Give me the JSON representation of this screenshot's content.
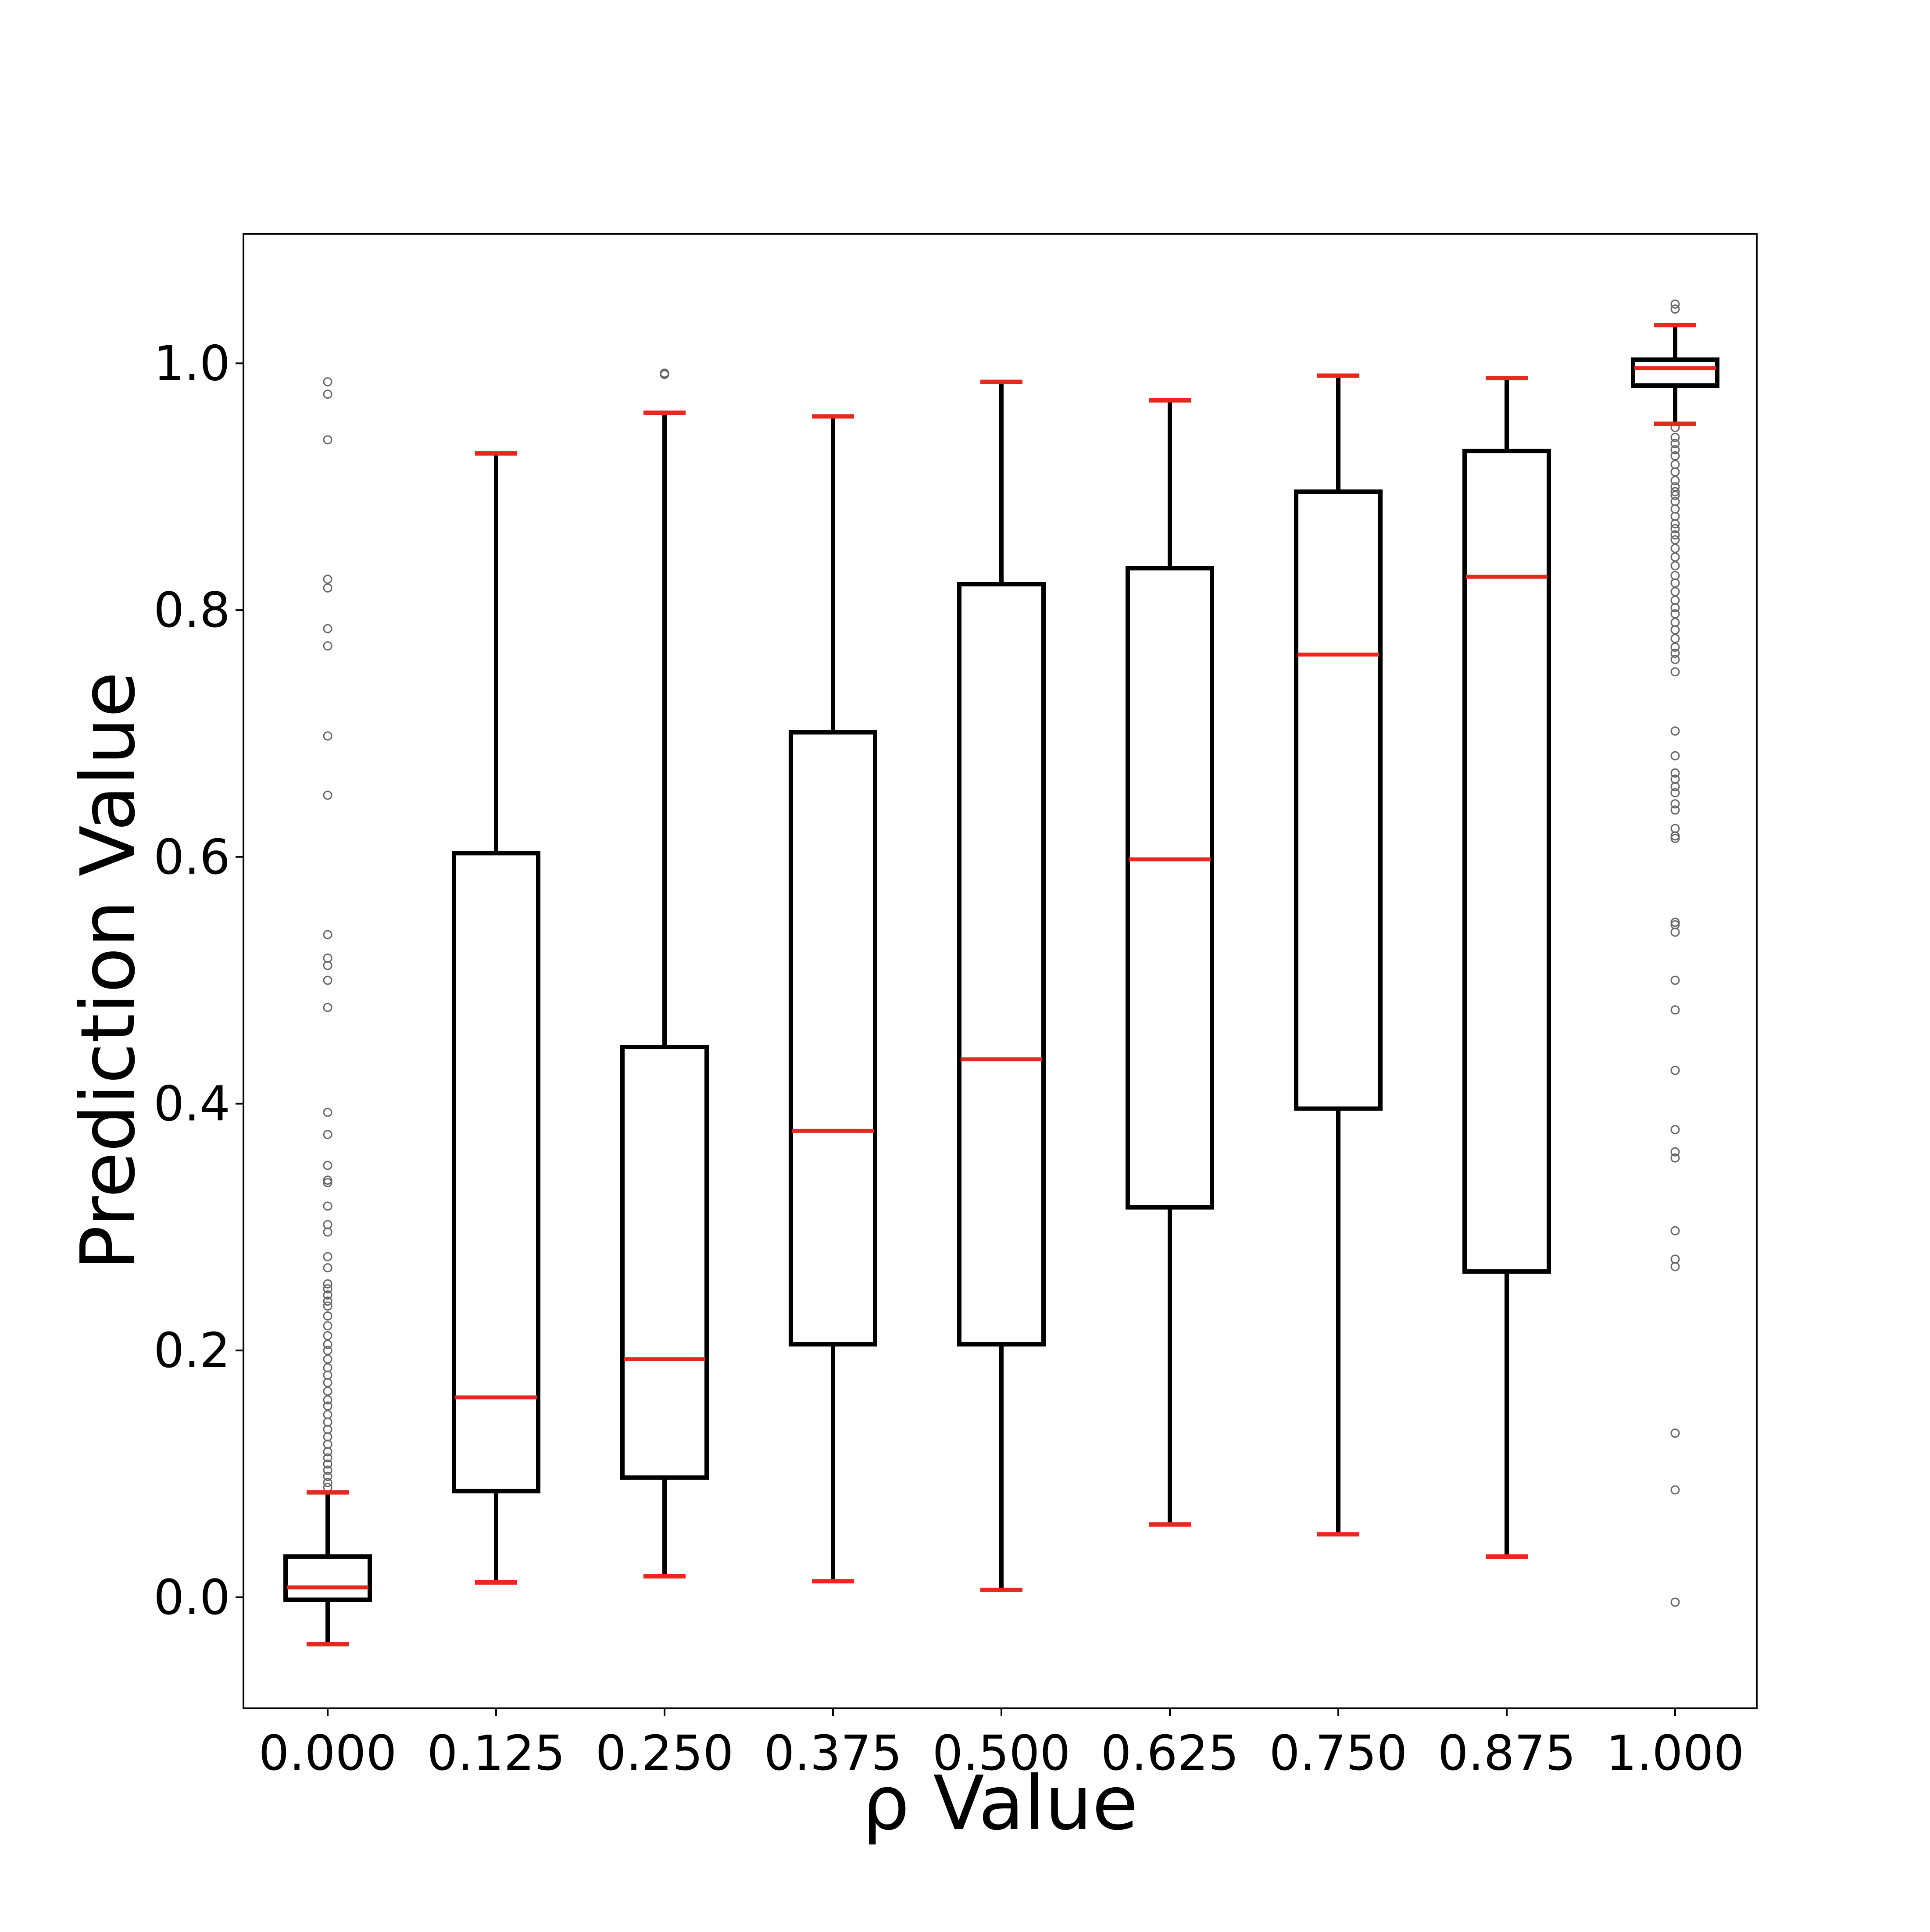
{
  "chart_data": {
    "type": "box",
    "title": "",
    "xlabel": "ρ Value",
    "ylabel": "Prediction Value",
    "ylim": [
      -0.09,
      1.105
    ],
    "yticks": [
      "0.0",
      "0.2",
      "0.4",
      "0.6",
      "0.8",
      "1.0"
    ],
    "ytick_values": [
      0.0,
      0.2,
      0.4,
      0.6,
      0.8,
      1.0
    ],
    "categories": [
      "0.000",
      "0.125",
      "0.250",
      "0.375",
      "0.500",
      "0.625",
      "0.750",
      "0.875",
      "1.000"
    ],
    "boxes": [
      {
        "whisker_low": -0.038,
        "q1": -0.002,
        "median": 0.008,
        "q3": 0.033,
        "whisker_high": 0.085,
        "outliers": [
          0.985,
          0.975,
          0.938,
          0.825,
          0.818,
          0.785,
          0.771,
          0.698,
          0.65,
          0.537,
          0.518,
          0.512,
          0.5,
          0.478,
          0.393,
          0.375,
          0.35,
          0.338,
          0.336,
          0.317,
          0.302,
          0.296,
          0.276,
          0.267,
          0.254,
          0.25,
          0.245,
          0.24,
          0.236,
          0.228,
          0.22,
          0.212,
          0.205,
          0.2,
          0.193,
          0.186,
          0.18,
          0.174,
          0.167,
          0.16,
          0.155,
          0.148,
          0.142,
          0.136,
          0.13,
          0.124,
          0.118,
          0.113,
          0.108,
          0.103,
          0.098,
          0.093,
          0.089
        ]
      },
      {
        "whisker_low": 0.012,
        "q1": 0.086,
        "median": 0.162,
        "q3": 0.603,
        "whisker_high": 0.927,
        "outliers": []
      },
      {
        "whisker_low": 0.017,
        "q1": 0.097,
        "median": 0.193,
        "q3": 0.446,
        "whisker_high": 0.96,
        "outliers": [
          0.992,
          0.991
        ]
      },
      {
        "whisker_low": 0.013,
        "q1": 0.205,
        "median": 0.378,
        "q3": 0.701,
        "whisker_high": 0.957,
        "outliers": []
      },
      {
        "whisker_low": 0.006,
        "q1": 0.205,
        "median": 0.436,
        "q3": 0.821,
        "whisker_high": 0.985,
        "outliers": []
      },
      {
        "whisker_low": 0.059,
        "q1": 0.316,
        "median": 0.598,
        "q3": 0.834,
        "whisker_high": 0.97,
        "outliers": []
      },
      {
        "whisker_low": 0.051,
        "q1": 0.396,
        "median": 0.764,
        "q3": 0.896,
        "whisker_high": 0.99,
        "outliers": []
      },
      {
        "whisker_low": 0.033,
        "q1": 0.264,
        "median": 0.827,
        "q3": 0.929,
        "whisker_high": 0.988,
        "outliers": []
      },
      {
        "whisker_low": 0.951,
        "q1": 0.982,
        "median": 0.996,
        "q3": 1.003,
        "whisker_high": 1.031,
        "outliers": [
          1.048,
          1.044,
          0.948,
          0.94,
          0.935,
          0.93,
          0.925,
          0.918,
          0.912,
          0.905,
          0.9,
          0.896,
          0.893,
          0.888,
          0.882,
          0.876,
          0.87,
          0.866,
          0.861,
          0.857,
          0.85,
          0.843,
          0.836,
          0.828,
          0.822,
          0.815,
          0.808,
          0.802,
          0.797,
          0.79,
          0.784,
          0.777,
          0.77,
          0.765,
          0.76,
          0.75,
          0.702,
          0.682,
          0.668,
          0.663,
          0.657,
          0.652,
          0.643,
          0.638,
          0.623,
          0.617,
          0.615,
          0.547,
          0.545,
          0.539,
          0.5,
          0.476,
          0.427,
          0.379,
          0.361,
          0.356,
          0.297,
          0.274,
          0.268,
          0.133,
          0.087,
          -0.004
        ]
      }
    ],
    "colors": {
      "box": "#000000",
      "median": "#e8281e",
      "caps": "#e8281e",
      "outlier_edge": "#666666",
      "axes": "#000000"
    },
    "grid": false,
    "legend": "none"
  }
}
